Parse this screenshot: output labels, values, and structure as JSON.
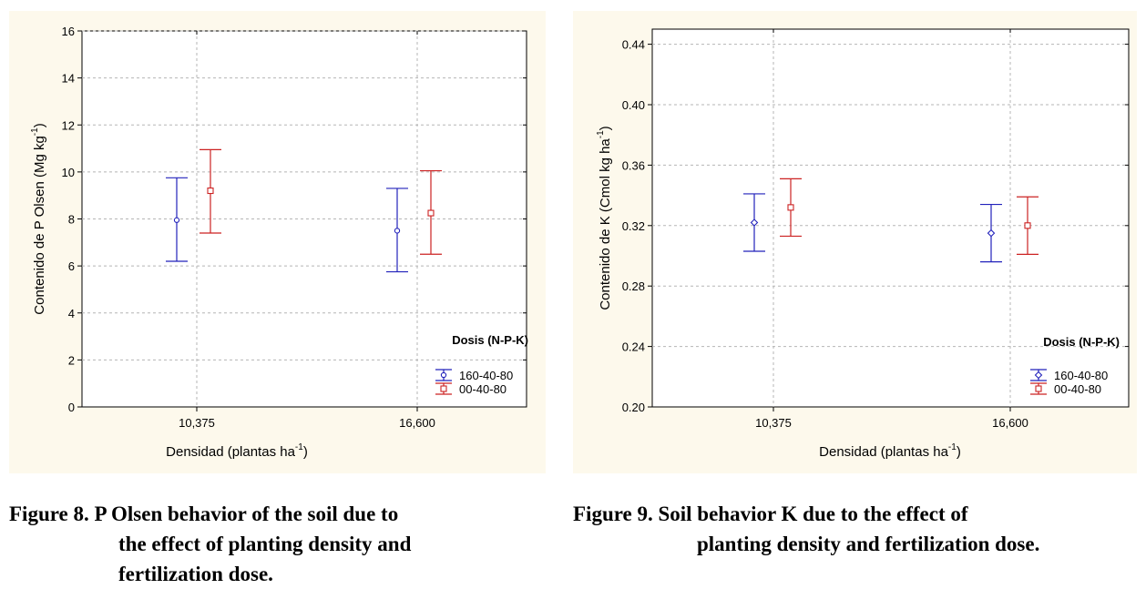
{
  "chart_data": [
    {
      "type": "scatter",
      "subtype": "error-bar",
      "categories": [
        "10,375",
        "16,600"
      ],
      "xlabel": "Densidad (plantas ha",
      "xlabel_sup": "-1",
      "xlabel_end": ")",
      "ylabel": "Contenido de P Olsen (Mg kg",
      "ylabel_sup": "-1",
      "ylabel_end": ")",
      "ylim": [
        0,
        16
      ],
      "yticks": [
        0,
        2,
        4,
        6,
        8,
        10,
        12,
        14,
        16
      ],
      "ytick_labels": [
        "0",
        "2",
        "4",
        "6",
        "8",
        "10",
        "12",
        "14",
        "16"
      ],
      "grid": true,
      "legend_title": "Dosis (N-P-K)",
      "legend_position": "bottom-right",
      "series": [
        {
          "name": "160-40-80",
          "color": "#2222bb",
          "marker": "circle",
          "values": [
            7.95,
            7.5
          ],
          "lower": [
            6.2,
            5.75
          ],
          "upper": [
            9.75,
            9.3
          ]
        },
        {
          "name": "00-40-80",
          "color": "#cc2222",
          "marker": "square",
          "values": [
            9.2,
            8.25
          ],
          "lower": [
            7.4,
            6.5
          ],
          "upper": [
            10.95,
            10.05
          ]
        }
      ]
    },
    {
      "type": "scatter",
      "subtype": "error-bar",
      "categories": [
        "10,375",
        "16,600"
      ],
      "xlabel": "Densidad (plantas ha",
      "xlabel_sup": "-1",
      "xlabel_end": ")",
      "ylabel": "Contenido de K (Cmol kg ha",
      "ylabel_sup": "-1",
      "ylabel_end": ")",
      "ylim": [
        0.2,
        0.45
      ],
      "yticks": [
        0.2,
        0.24,
        0.28,
        0.32,
        0.36,
        0.4,
        0.44
      ],
      "ytick_labels": [
        "0.20",
        "0.24",
        "0.28",
        "0.32",
        "0.36",
        "0.40",
        "0.44"
      ],
      "grid": true,
      "legend_title": "Dosis (N-P-K)",
      "legend_position": "bottom-right",
      "series": [
        {
          "name": "160-40-80",
          "color": "#2222bb",
          "marker": "diamond",
          "values": [
            0.322,
            0.315
          ],
          "lower": [
            0.303,
            0.296
          ],
          "upper": [
            0.341,
            0.334
          ]
        },
        {
          "name": "00-40-80",
          "color": "#cc2222",
          "marker": "square",
          "values": [
            0.332,
            0.32
          ],
          "lower": [
            0.313,
            0.301
          ],
          "upper": [
            0.351,
            0.339
          ]
        }
      ]
    }
  ],
  "captions": {
    "left_line1": "Figure 8. P Olsen behavior of the soil due to",
    "left_line2": "the effect of planting density and",
    "left_line3": "fertilization dose.",
    "right_line1": "Figure 9. Soil behavior K due to the effect of",
    "right_line2": "planting density and fertilization dose."
  }
}
